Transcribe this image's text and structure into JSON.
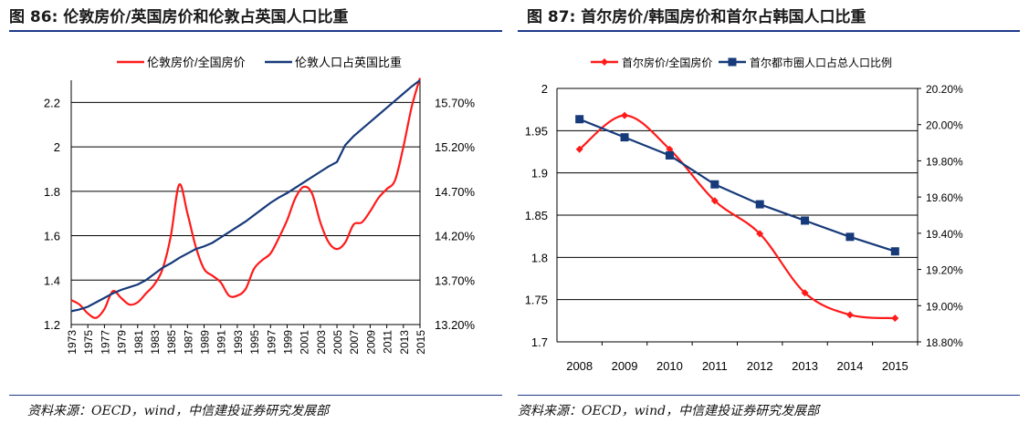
{
  "figures": [
    {
      "title": "图 86: 伦敦房价/英国房价和伦敦占英国人口比重",
      "source": "资料来源：OECD，wind，中信建投证券研究发展部",
      "chart_data": {
        "type": "line",
        "x": [
          1973,
          1974,
          1975,
          1976,
          1977,
          1978,
          1979,
          1980,
          1981,
          1982,
          1983,
          1984,
          1985,
          1986,
          1987,
          1988,
          1989,
          1990,
          1991,
          1992,
          1993,
          1994,
          1995,
          1996,
          1997,
          1998,
          1999,
          2000,
          2001,
          2002,
          2003,
          2004,
          2005,
          2006,
          2007,
          2008,
          2009,
          2010,
          2011,
          2012,
          2013,
          2014,
          2015
        ],
        "x_tick_labels": [
          "1973",
          "1975",
          "1977",
          "1979",
          "1981",
          "1983",
          "1985",
          "1987",
          "1989",
          "1991",
          "1993",
          "1995",
          "1997",
          "1999",
          "2001",
          "2003",
          "2005",
          "2007",
          "2009",
          "2011",
          "2013",
          "2015"
        ],
        "y_left_ticks": [
          "1.2",
          "1.4",
          "1.6",
          "1.8",
          "2",
          "2.2"
        ],
        "y_right_ticks": [
          "13.20%",
          "13.70%",
          "14.20%",
          "14.70%",
          "15.20%",
          "15.70%"
        ],
        "ylim_left": [
          1.2,
          2.3
        ],
        "ylim_right": [
          13.2,
          15.95
        ],
        "series": [
          {
            "name": "伦敦房价/全国房价",
            "axis": "left",
            "color": "#ff1a1a",
            "values": [
              1.31,
              1.29,
              1.25,
              1.23,
              1.27,
              1.35,
              1.32,
              1.29,
              1.3,
              1.34,
              1.38,
              1.45,
              1.6,
              1.83,
              1.7,
              1.55,
              1.45,
              1.42,
              1.39,
              1.33,
              1.33,
              1.36,
              1.45,
              1.49,
              1.52,
              1.59,
              1.67,
              1.77,
              1.82,
              1.79,
              1.66,
              1.57,
              1.54,
              1.57,
              1.65,
              1.66,
              1.71,
              1.77,
              1.81,
              1.85,
              2.0,
              2.18,
              2.31
            ]
          },
          {
            "name": "伦敦人口占英国比重",
            "axis": "right",
            "color": "#173a7a",
            "values": [
              13.35,
              13.37,
              13.4,
              13.45,
              13.5,
              13.55,
              13.59,
              13.62,
              13.65,
              13.7,
              13.77,
              13.84,
              13.89,
              13.95,
              14.0,
              14.05,
              14.08,
              14.12,
              14.18,
              14.24,
              14.3,
              14.36,
              14.43,
              14.5,
              14.57,
              14.63,
              14.68,
              14.74,
              14.8,
              14.86,
              14.92,
              14.98,
              15.03,
              15.22,
              15.32,
              15.4,
              15.48,
              15.56,
              15.64,
              15.72,
              15.8,
              15.88,
              15.95
            ]
          }
        ],
        "legend_position": "top"
      }
    },
    {
      "title": "图 87: 首尔房价/韩国房价和首尔占韩国人口比重",
      "source": "资料来源：OECD，wind，中信建投证券研究发展部",
      "chart_data": {
        "type": "line",
        "categories": [
          "2008",
          "2009",
          "2010",
          "2011",
          "2012",
          "2013",
          "2014",
          "2015"
        ],
        "y_left_ticks": [
          "1.7",
          "1.75",
          "1.8",
          "1.85",
          "1.9",
          "1.95",
          "2"
        ],
        "y_right_ticks": [
          "18.80%",
          "19.00%",
          "19.20%",
          "19.40%",
          "19.60%",
          "19.80%",
          "20.00%",
          "20.20%"
        ],
        "ylim_left": [
          1.7,
          2.0
        ],
        "ylim_right": [
          18.8,
          20.2
        ],
        "series": [
          {
            "name": "首尔房价/全国房价",
            "axis": "left",
            "color": "#ff1a1a",
            "marker": "diamond",
            "values": [
              1.928,
              1.968,
              1.928,
              1.867,
              1.828,
              1.758,
              1.732,
              1.728
            ]
          },
          {
            "name": "首尔都市圈人口占总人口比例",
            "axis": "right",
            "color": "#173a7a",
            "marker": "square",
            "values": [
              20.03,
              19.93,
              19.83,
              19.67,
              19.56,
              19.47,
              19.38,
              19.3
            ]
          }
        ],
        "legend_position": "top"
      }
    }
  ]
}
